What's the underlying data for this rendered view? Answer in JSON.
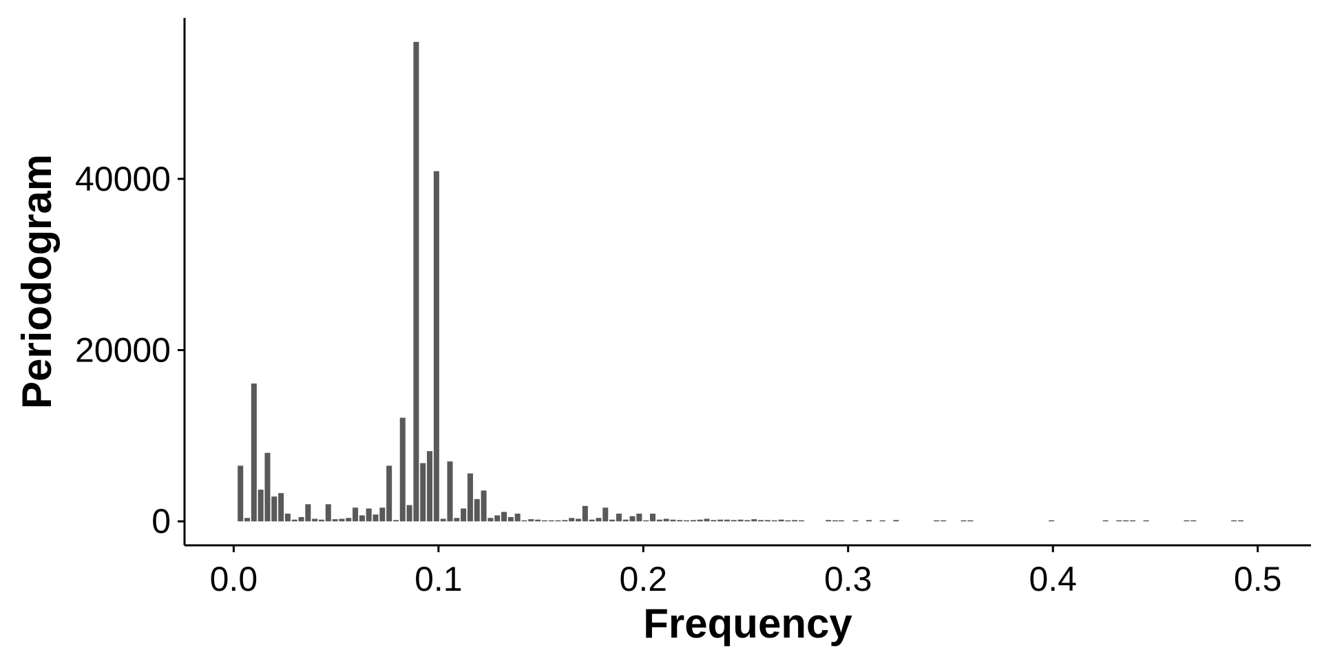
{
  "chart_data": {
    "type": "bar",
    "xlabel": "Frequency",
    "ylabel": "Periodogram",
    "xlim": [
      -0.024,
      0.526
    ],
    "ylim": [
      -2800,
      58800
    ],
    "x_ticks": [
      {
        "value": 0.0,
        "label": "0.0"
      },
      {
        "value": 0.1,
        "label": "0.1"
      },
      {
        "value": 0.2,
        "label": "0.2"
      },
      {
        "value": 0.3,
        "label": "0.3"
      },
      {
        "value": 0.4,
        "label": "0.4"
      },
      {
        "value": 0.5,
        "label": "0.5"
      }
    ],
    "y_ticks": [
      {
        "value": 0,
        "label": "0"
      },
      {
        "value": 20000,
        "label": "20000"
      },
      {
        "value": 40000,
        "label": "40000"
      }
    ],
    "bar_width": 0.0027,
    "bar_color": "#595959",
    "axis_color": "#000000",
    "grid": false,
    "x": [
      0.0033,
      0.0066,
      0.0099,
      0.0132,
      0.0165,
      0.0198,
      0.0231,
      0.0264,
      0.0297,
      0.033,
      0.0363,
      0.0396,
      0.0429,
      0.0462,
      0.0495,
      0.0528,
      0.0561,
      0.0594,
      0.0627,
      0.066,
      0.0693,
      0.0726,
      0.0759,
      0.0792,
      0.0825,
      0.0858,
      0.0891,
      0.0924,
      0.0957,
      0.099,
      0.1023,
      0.1056,
      0.1089,
      0.1122,
      0.1155,
      0.1188,
      0.1221,
      0.1254,
      0.1287,
      0.132,
      0.1353,
      0.1386,
      0.1419,
      0.1452,
      0.1485,
      0.1518,
      0.1551,
      0.1584,
      0.1617,
      0.165,
      0.1683,
      0.1716,
      0.1749,
      0.1782,
      0.1815,
      0.1848,
      0.1881,
      0.1914,
      0.1947,
      0.198,
      0.2013,
      0.2046,
      0.2079,
      0.2112,
      0.2145,
      0.2178,
      0.2211,
      0.2244,
      0.2277,
      0.231,
      0.2343,
      0.2376,
      0.2409,
      0.2442,
      0.2475,
      0.2508,
      0.2541,
      0.2574,
      0.2607,
      0.264,
      0.2673,
      0.2706,
      0.2739,
      0.2772,
      0.2904,
      0.2937,
      0.2967,
      0.3036,
      0.3102,
      0.3168,
      0.3234,
      0.3432,
      0.3465,
      0.3564,
      0.3597,
      0.3993,
      0.4257,
      0.4323,
      0.4356,
      0.4389,
      0.4455,
      0.4653,
      0.4686,
      0.4884,
      0.4917
    ],
    "values": [
      6500,
      400,
      16100,
      3700,
      8000,
      2900,
      3300,
      900,
      200,
      500,
      2000,
      300,
      200,
      2000,
      250,
      300,
      400,
      1600,
      700,
      1500,
      800,
      1600,
      6500,
      150,
      12100,
      1900,
      56000,
      6800,
      8200,
      40900,
      300,
      7000,
      400,
      1500,
      5600,
      2600,
      3600,
      400,
      700,
      1100,
      500,
      900,
      100,
      250,
      200,
      100,
      100,
      0,
      150,
      400,
      300,
      1800,
      200,
      400,
      1600,
      200,
      900,
      200,
      600,
      900,
      100,
      900,
      200,
      300,
      200,
      150,
      100,
      150,
      200,
      300,
      150,
      200,
      200,
      150,
      200,
      150,
      250,
      150,
      150,
      100,
      200,
      100,
      150,
      100,
      150,
      100,
      100,
      100,
      150,
      100,
      150,
      100,
      100,
      100,
      100,
      100,
      100,
      100,
      100,
      100,
      100,
      100,
      100,
      100,
      100
    ]
  }
}
